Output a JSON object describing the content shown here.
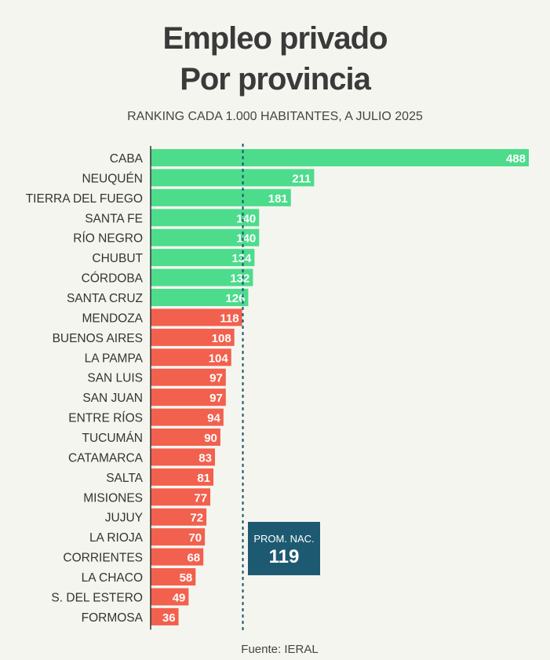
{
  "title_line1": "Empleo privado",
  "title_line2": "Por provincia",
  "subtitle": "RANKING CADA 1.000 HABITANTES, A JULIO 2025",
  "source": "Fuente: IERAL",
  "average": {
    "label": "PROM. NAC.",
    "value": "119"
  },
  "colors": {
    "above": "#4cdc8c",
    "below": "#f2604e",
    "average_box": "#1d5a72",
    "background": "#f5f5ef"
  },
  "chart_data": {
    "type": "bar",
    "orientation": "horizontal",
    "categories": [
      "CABA",
      "NEUQUÉN",
      "TIERRA DEL FUEGO",
      "SANTA FE",
      "RÍO NEGRO",
      "CHUBUT",
      "CÓRDOBA",
      "SANTA CRUZ",
      "MENDOZA",
      "BUENOS AIRES",
      "LA PAMPA",
      "SAN LUIS",
      "SAN JUAN",
      "ENTRE RÍOS",
      "TUCUMÁN",
      "CATAMARCA",
      "SALTA",
      "MISIONES",
      "JUJUY",
      "LA RIOJA",
      "CORRIENTES",
      "LA CHACO",
      "S. DEL ESTERO",
      "FORMOSA"
    ],
    "values": [
      488,
      211,
      181,
      140,
      140,
      134,
      132,
      126,
      118,
      108,
      104,
      97,
      97,
      94,
      90,
      83,
      81,
      77,
      72,
      70,
      68,
      58,
      49,
      36
    ],
    "reference_line": 119,
    "xlim": [
      0,
      488
    ],
    "grid": false
  }
}
